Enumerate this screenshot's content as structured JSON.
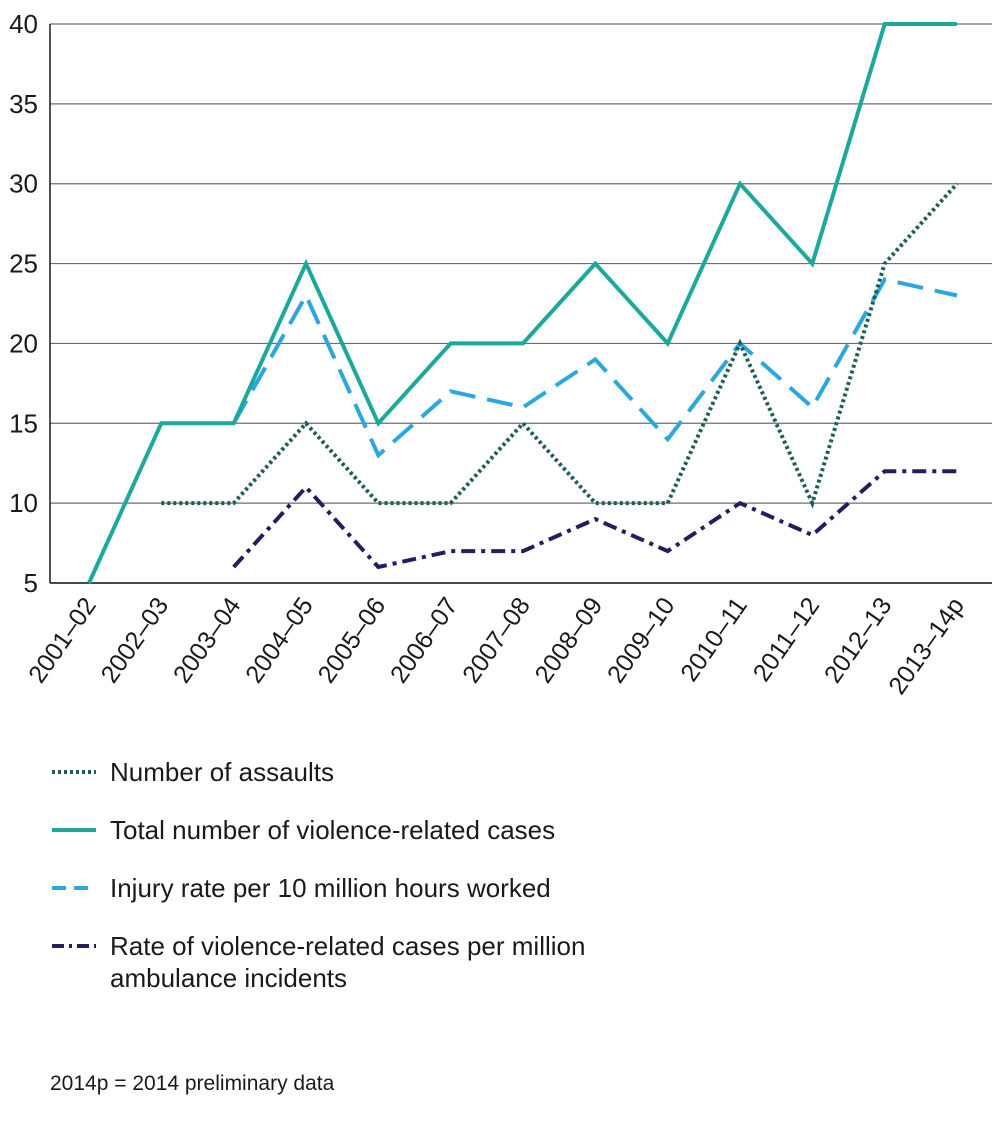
{
  "chart_data": {
    "type": "line",
    "title": "",
    "xlabel": "",
    "ylabel": "",
    "ylim": [
      5,
      40
    ],
    "yticks": [
      5,
      10,
      15,
      20,
      25,
      30,
      35,
      40
    ],
    "grid": true,
    "categories": [
      "2001–02",
      "2002–03",
      "2003–04",
      "2004–05",
      "2005–06",
      "2006–07",
      "2007–08",
      "2008–09",
      "2009–10",
      "2010–11",
      "2011–12",
      "2012–13",
      "2013–14p"
    ],
    "series": [
      {
        "name": "Number of assaults",
        "key": "assaults",
        "color": "#1e5c5a",
        "style": "dotted",
        "values": [
          null,
          10,
          10,
          15,
          10,
          10,
          15,
          10,
          10,
          20,
          10,
          25,
          30
        ]
      },
      {
        "name": "Total number of violence-related cases",
        "key": "total",
        "color": "#1ea89c",
        "style": "solid",
        "values": [
          5,
          15,
          15,
          25,
          15,
          20,
          20,
          25,
          20,
          30,
          25,
          40,
          40
        ]
      },
      {
        "name": "Injury rate per 10 million hours worked",
        "key": "injury",
        "color": "#2aa7de",
        "style": "dashed",
        "values": [
          null,
          null,
          15,
          23,
          13,
          17,
          16,
          19,
          14,
          20,
          16,
          24,
          23
        ]
      },
      {
        "name": "Rate of violence-related cases per million ambulance incidents",
        "key": "rate",
        "color": "#2a1a5e",
        "style": "dashdot",
        "values": [
          null,
          null,
          6,
          11,
          6,
          7,
          7,
          9,
          7,
          10,
          8,
          12,
          12
        ]
      }
    ],
    "legend": {
      "items": [
        {
          "label": "Number of assaults",
          "line2": ""
        },
        {
          "label": "Total number of violence-related cases",
          "line2": ""
        },
        {
          "label": "Injury rate per 10 million hours worked",
          "line2": ""
        },
        {
          "label": "Rate of violence-related cases per million",
          "line2": "ambulance incidents"
        }
      ]
    },
    "footnote": "2014p = 2014 preliminary data"
  }
}
